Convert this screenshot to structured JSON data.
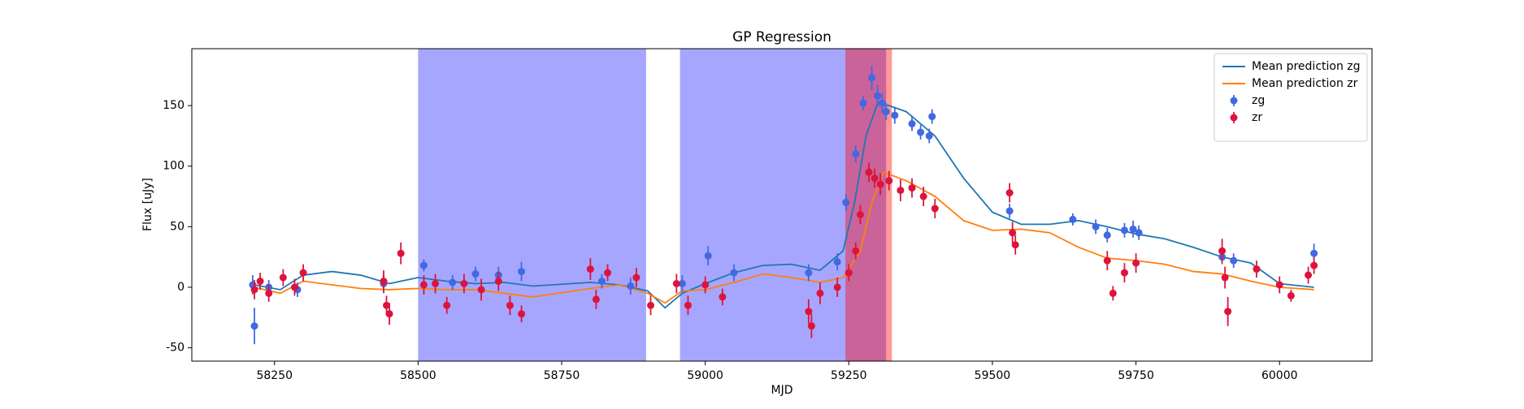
{
  "chart_data": {
    "type": "scatter",
    "title": "GP Regression",
    "x_label": "MJD",
    "y_label": "Flux [uJy]",
    "xlim": [
      58106,
      60161
    ],
    "ylim": [
      -61,
      197
    ],
    "xticks": [
      58250,
      58500,
      58750,
      59000,
      59250,
      59500,
      59750,
      60000
    ],
    "yticks": [
      -50,
      0,
      50,
      100,
      150
    ],
    "legend": "upper right",
    "shaded_regions": [
      {
        "xmin": 58500,
        "xmax": 58897,
        "color": "#0000ff"
      },
      {
        "xmin": 58956,
        "xmax": 59244,
        "color": "#0000ff"
      },
      {
        "xmin": 59244,
        "xmax": 59315,
        "color": "#0000ff"
      },
      {
        "xmin": 59244,
        "xmax": 59325,
        "color": "#ff0000"
      }
    ],
    "series": [
      {
        "name": "Mean prediction zg",
        "kind": "line",
        "color": "#1f77b4",
        "x": [
          58215,
          58260,
          58300,
          58350,
          58400,
          58450,
          58500,
          58550,
          58600,
          58650,
          58700,
          58800,
          58850,
          58900,
          58930,
          58960,
          59000,
          59050,
          59100,
          59150,
          59200,
          59240,
          59260,
          59280,
          59300,
          59320,
          59350,
          59400,
          59450,
          59500,
          59550,
          59600,
          59650,
          59700,
          59750,
          59800,
          59850,
          59900,
          59950,
          60000,
          60060
        ],
        "values": [
          2,
          -2,
          10,
          13,
          10,
          3,
          8,
          5,
          3,
          4,
          1,
          4,
          2,
          -3,
          -17,
          -5,
          3,
          12,
          18,
          19,
          14,
          30,
          70,
          125,
          152,
          150,
          145,
          125,
          90,
          62,
          52,
          52,
          55,
          50,
          44,
          40,
          33,
          25,
          20,
          3,
          0
        ]
      },
      {
        "name": "Mean prediction zr",
        "kind": "line",
        "color": "#ff7f0e",
        "x": [
          58215,
          58260,
          58300,
          58350,
          58400,
          58450,
          58500,
          58550,
          58600,
          58700,
          58800,
          58850,
          58900,
          58930,
          58960,
          59000,
          59050,
          59100,
          59150,
          59200,
          59240,
          59270,
          59290,
          59310,
          59350,
          59400,
          59450,
          59500,
          59550,
          59600,
          59650,
          59700,
          59750,
          59800,
          59850,
          59900,
          59950,
          60000,
          60060
        ],
        "values": [
          0,
          -5,
          5,
          2,
          -1,
          -2,
          -1,
          -2,
          -2,
          -8,
          -1,
          2,
          -5,
          -13,
          -3,
          -2,
          4,
          11,
          8,
          4,
          8,
          30,
          70,
          95,
          88,
          75,
          55,
          47,
          48,
          45,
          33,
          24,
          22,
          19,
          13,
          11,
          5,
          0,
          -2
        ]
      },
      {
        "name": "zg",
        "kind": "points",
        "color": "#4169e1",
        "x": [
          58212,
          58215,
          58240,
          58290,
          58440,
          58510,
          58560,
          58600,
          58640,
          58680,
          58820,
          58870,
          58960,
          59005,
          59050,
          59180,
          59230,
          59245,
          59262,
          59275,
          59290,
          59300,
          59308,
          59315,
          59330,
          59360,
          59375,
          59390,
          59395,
          59530,
          59640,
          59680,
          59700,
          59730,
          59745,
          59755,
          59900,
          59920,
          60060
        ],
        "values": [
          2,
          -32,
          0,
          -2,
          3,
          18,
          4,
          11,
          10,
          13,
          5,
          1,
          3,
          26,
          12,
          12,
          21,
          70,
          110,
          152,
          173,
          158,
          152,
          145,
          142,
          135,
          128,
          125,
          141,
          63,
          56,
          50,
          43,
          47,
          48,
          45,
          25,
          22,
          28
        ],
        "errors": [
          8,
          15,
          6,
          6,
          8,
          5,
          6,
          6,
          7,
          8,
          6,
          7,
          7,
          8,
          7,
          7,
          7,
          7,
          7,
          6,
          10,
          9,
          8,
          7,
          7,
          6,
          6,
          6,
          6,
          6,
          5,
          6,
          6,
          6,
          7,
          6,
          6,
          6,
          8
        ]
      },
      {
        "name": "zr",
        "kind": "points",
        "color": "#dc143c",
        "x": [
          58215,
          58225,
          58240,
          58265,
          58285,
          58300,
          58440,
          58445,
          58450,
          58470,
          58510,
          58530,
          58550,
          58580,
          58610,
          58640,
          58660,
          58680,
          58800,
          58810,
          58830,
          58880,
          58905,
          58950,
          58970,
          59000,
          59030,
          59180,
          59185,
          59200,
          59230,
          59250,
          59262,
          59270,
          59285,
          59295,
          59305,
          59320,
          59340,
          59360,
          59380,
          59400,
          59530,
          59535,
          59540,
          59700,
          59710,
          59730,
          59750,
          59900,
          59905,
          59910,
          59960,
          60000,
          60020,
          60050,
          60060
        ],
        "values": [
          -2,
          5,
          -5,
          8,
          0,
          12,
          5,
          -15,
          -22,
          28,
          2,
          3,
          -15,
          3,
          -2,
          5,
          -15,
          -22,
          15,
          -10,
          12,
          8,
          -15,
          3,
          -15,
          2,
          -8,
          -20,
          -32,
          -5,
          0,
          12,
          30,
          60,
          95,
          90,
          85,
          88,
          80,
          82,
          75,
          65,
          78,
          45,
          35,
          22,
          -5,
          12,
          20,
          30,
          8,
          -20,
          15,
          2,
          -7,
          10,
          18
        ],
        "errors": [
          8,
          7,
          7,
          7,
          7,
          7,
          9,
          8,
          9,
          9,
          8,
          8,
          7,
          8,
          9,
          8,
          8,
          7,
          9,
          8,
          7,
          8,
          8,
          8,
          8,
          7,
          7,
          10,
          10,
          9,
          8,
          7,
          7,
          8,
          8,
          8,
          9,
          8,
          9,
          8,
          8,
          8,
          8,
          9,
          8,
          8,
          6,
          8,
          8,
          10,
          9,
          12,
          7,
          7,
          5,
          7,
          7
        ]
      }
    ]
  }
}
